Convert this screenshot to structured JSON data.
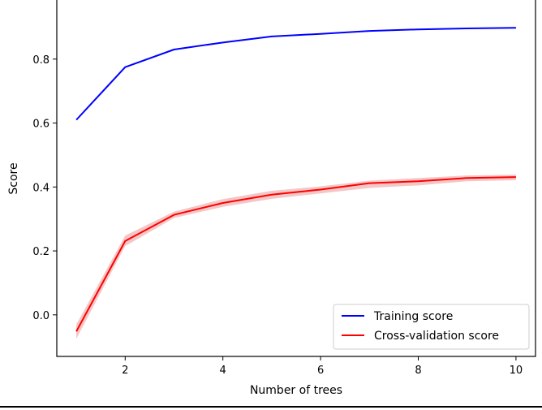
{
  "chart_data": {
    "type": "line",
    "title": "",
    "xlabel": "Number of trees",
    "ylabel": "Score",
    "xlim": [
      0.6,
      10.4
    ],
    "ylim": [
      -0.13,
      0.99
    ],
    "xticks": [
      2,
      4,
      6,
      8,
      10
    ],
    "xtick_labels": [
      "2",
      "4",
      "6",
      "8",
      "10"
    ],
    "yticks": [
      0.0,
      0.2,
      0.4,
      0.6,
      0.8
    ],
    "ytick_labels": [
      "0.0",
      "0.2",
      "0.4",
      "0.6",
      "0.8"
    ],
    "grid": false,
    "legend_position": "bottom-right",
    "x": [
      1,
      2,
      3,
      4,
      5,
      6,
      7,
      8,
      9,
      10
    ],
    "series": [
      {
        "name": "Training score",
        "color": "#0000ff",
        "values": [
          0.61,
          0.775,
          0.83,
          0.852,
          0.871,
          0.879,
          0.888,
          0.893,
          0.896,
          0.898
        ],
        "band_lower": [
          0.609,
          0.774,
          0.829,
          0.851,
          0.87,
          0.878,
          0.887,
          0.892,
          0.895,
          0.897
        ],
        "band_upper": [
          0.611,
          0.776,
          0.831,
          0.853,
          0.872,
          0.88,
          0.889,
          0.894,
          0.897,
          0.899
        ]
      },
      {
        "name": "Cross-validation score",
        "color": "#ff0000",
        "band_color": "#f4c7c7",
        "values": [
          -0.052,
          0.231,
          0.313,
          0.35,
          0.376,
          0.392,
          0.412,
          0.418,
          0.428,
          0.431
        ],
        "band_lower": [
          -0.075,
          0.215,
          0.303,
          0.338,
          0.363,
          0.38,
          0.397,
          0.405,
          0.418,
          0.421
        ],
        "band_upper": [
          -0.03,
          0.248,
          0.323,
          0.362,
          0.388,
          0.402,
          0.42,
          0.428,
          0.436,
          0.439
        ]
      }
    ]
  }
}
